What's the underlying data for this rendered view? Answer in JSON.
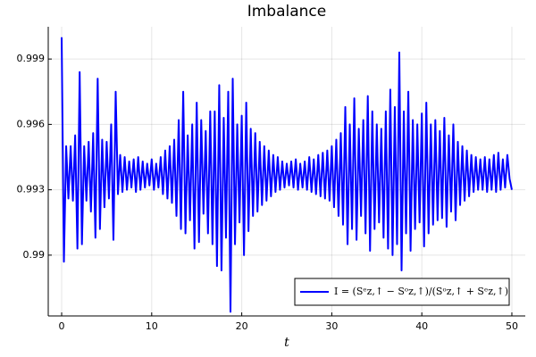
{
  "chart_data": {
    "type": "line",
    "title": "Imbalance",
    "x_label": "t",
    "xlim": [
      -1.49,
      51.49
    ],
    "ylim": [
      0.98721,
      1.00048
    ],
    "xticks": [
      0,
      10,
      20,
      30,
      40,
      50
    ],
    "yticks": [
      0.99,
      0.993,
      0.996,
      0.999
    ],
    "grid": true,
    "legend": "bottom right",
    "series": [
      {
        "name": "I = (Sᵉz,↑ − Sᵒz,↑)/(Sᵒz,↑ + Sᵉz,↑)",
        "color": "#0000ff",
        "x": [
          0,
          0.25,
          0.5,
          0.75,
          1,
          1.25,
          1.5,
          1.75,
          2,
          2.25,
          2.5,
          2.75,
          3,
          3.25,
          3.5,
          3.75,
          4,
          4.25,
          4.5,
          4.75,
          5,
          5.25,
          5.5,
          5.75,
          6,
          6.25,
          6.5,
          6.75,
          7,
          7.25,
          7.5,
          7.75,
          8,
          8.25,
          8.5,
          8.75,
          9,
          9.25,
          9.5,
          9.75,
          10,
          10.25,
          10.5,
          10.75,
          11,
          11.25,
          11.5,
          11.75,
          12,
          12.25,
          12.5,
          12.75,
          13,
          13.25,
          13.5,
          13.75,
          14,
          14.25,
          14.5,
          14.75,
          15,
          15.25,
          15.5,
          15.75,
          16,
          16.25,
          16.5,
          16.75,
          17,
          17.25,
          17.5,
          17.75,
          18,
          18.25,
          18.5,
          18.75,
          19,
          19.25,
          19.5,
          19.75,
          20,
          20.25,
          20.5,
          20.75,
          21,
          21.25,
          21.5,
          21.75,
          22,
          22.25,
          22.5,
          22.75,
          23,
          23.25,
          23.5,
          23.75,
          24,
          24.25,
          24.5,
          24.75,
          25,
          25.25,
          25.5,
          25.75,
          26,
          26.25,
          26.5,
          26.75,
          27,
          27.25,
          27.5,
          27.75,
          28,
          28.25,
          28.5,
          28.75,
          29,
          29.25,
          29.5,
          29.75,
          30,
          30.25,
          30.5,
          30.75,
          31,
          31.25,
          31.5,
          31.75,
          32,
          32.25,
          32.5,
          32.75,
          33,
          33.25,
          33.5,
          33.75,
          34,
          34.25,
          34.5,
          34.75,
          35,
          35.25,
          35.5,
          35.75,
          36,
          36.25,
          36.5,
          36.75,
          37,
          37.25,
          37.5,
          37.75,
          38,
          38.25,
          38.5,
          38.75,
          39,
          39.25,
          39.5,
          39.75,
          40,
          40.25,
          40.5,
          40.75,
          41,
          41.25,
          41.5,
          41.75,
          42,
          42.25,
          42.5,
          42.75,
          43,
          43.25,
          43.5,
          43.75,
          44,
          44.25,
          44.5,
          44.75,
          45,
          45.25,
          45.5,
          45.75,
          46,
          46.25,
          46.5,
          46.75,
          47,
          47.25,
          47.5,
          47.75,
          48,
          48.25,
          48.5,
          48.75,
          49,
          49.25,
          49.5,
          49.75,
          50
        ],
        "values": [
          1.0,
          0.9897,
          0.995,
          0.9926,
          0.995,
          0.9925,
          0.9955,
          0.9903,
          0.9984,
          0.9905,
          0.995,
          0.9925,
          0.9952,
          0.992,
          0.9956,
          0.9908,
          0.9981,
          0.9912,
          0.9953,
          0.9922,
          0.9952,
          0.9926,
          0.996,
          0.9907,
          0.9975,
          0.9928,
          0.9946,
          0.9929,
          0.9945,
          0.993,
          0.9943,
          0.9931,
          0.9944,
          0.9929,
          0.9945,
          0.993,
          0.9943,
          0.9931,
          0.9942,
          0.9932,
          0.9944,
          0.993,
          0.9942,
          0.9931,
          0.9945,
          0.9928,
          0.9948,
          0.9926,
          0.995,
          0.9924,
          0.9953,
          0.9918,
          0.9962,
          0.9912,
          0.9975,
          0.991,
          0.9955,
          0.9916,
          0.996,
          0.9903,
          0.997,
          0.9906,
          0.9962,
          0.9919,
          0.9957,
          0.991,
          0.9966,
          0.9905,
          0.9966,
          0.9895,
          0.9978,
          0.9893,
          0.9963,
          0.9908,
          0.9975,
          0.9874,
          0.9981,
          0.9905,
          0.996,
          0.9915,
          0.9964,
          0.99,
          0.997,
          0.9911,
          0.9958,
          0.9918,
          0.9956,
          0.992,
          0.9952,
          0.9923,
          0.995,
          0.9925,
          0.9948,
          0.9927,
          0.9946,
          0.9929,
          0.9945,
          0.993,
          0.9943,
          0.9931,
          0.9942,
          0.9932,
          0.9943,
          0.9931,
          0.9944,
          0.993,
          0.9942,
          0.9931,
          0.9943,
          0.993,
          0.9945,
          0.9929,
          0.9944,
          0.9928,
          0.9946,
          0.9927,
          0.9947,
          0.9926,
          0.9948,
          0.9925,
          0.995,
          0.9922,
          0.9953,
          0.9918,
          0.9956,
          0.9914,
          0.9968,
          0.9905,
          0.996,
          0.9912,
          0.9972,
          0.9907,
          0.9958,
          0.9918,
          0.9962,
          0.991,
          0.9973,
          0.9902,
          0.9966,
          0.9912,
          0.996,
          0.9915,
          0.9958,
          0.9908,
          0.9966,
          0.9903,
          0.9976,
          0.99,
          0.9968,
          0.9905,
          0.9993,
          0.9893,
          0.9966,
          0.991,
          0.9975,
          0.9902,
          0.9962,
          0.9912,
          0.996,
          0.9915,
          0.9965,
          0.9904,
          0.997,
          0.991,
          0.996,
          0.9914,
          0.9962,
          0.9916,
          0.9957,
          0.9917,
          0.9963,
          0.9913,
          0.9955,
          0.992,
          0.996,
          0.9916,
          0.9952,
          0.9923,
          0.995,
          0.9925,
          0.9948,
          0.9927,
          0.9946,
          0.9929,
          0.9945,
          0.993,
          0.9944,
          0.993,
          0.9945,
          0.9929,
          0.9944,
          0.993,
          0.9946,
          0.9929,
          0.9947,
          0.993,
          0.9944,
          0.9931,
          0.9946,
          0.9935,
          0.993
        ]
      }
    ]
  }
}
